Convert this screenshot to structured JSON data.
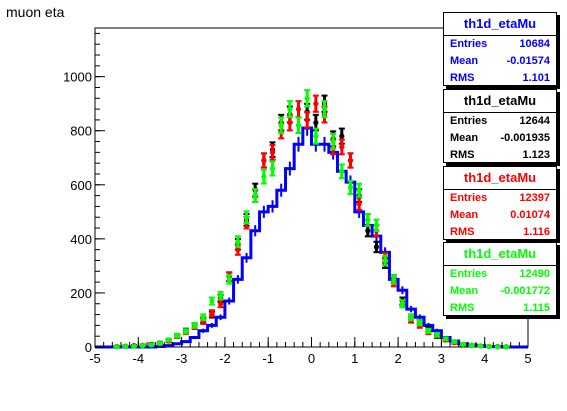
{
  "title": "muon eta",
  "colors": {
    "blue": "#0000ff",
    "black": "#000000",
    "red": "#ff0000",
    "green": "#00ff00"
  },
  "stats_boxes": [
    {
      "name": "th1d_etaMu",
      "color": "#0000ff",
      "entries_label": "Entries",
      "entries": "10684",
      "mean_label": "Mean",
      "mean": "-0.01574",
      "rms_label": "RMS",
      "rms": "1.101"
    },
    {
      "name": "th1d_etaMu",
      "color": "#000000",
      "entries_label": "Entries",
      "entries": "12644",
      "mean_label": "Mean",
      "mean": "-0.001935",
      "rms_label": "RMS",
      "rms": "1.123"
    },
    {
      "name": "th1d_etaMu",
      "color": "#ff0000",
      "entries_label": "Entries",
      "entries": "12397",
      "mean_label": "Mean",
      "mean": "0.01074",
      "rms_label": "RMS",
      "rms": "1.116"
    },
    {
      "name": "th1d_etaMu",
      "color": "#00ff00",
      "entries_label": "Entries",
      "entries": "12490",
      "mean_label": "Mean",
      "mean": "-0.001772",
      "rms_label": "RMS",
      "rms": "1.115"
    }
  ],
  "chart_data": {
    "type": "bar",
    "title": "muon eta",
    "xlabel": "",
    "ylabel": "",
    "xlim": [
      -5,
      5
    ],
    "ylim": [
      0,
      1180
    ],
    "bin_width": 0.2,
    "x_ticks": [
      -5,
      -4,
      -3,
      -2,
      -1,
      0,
      1,
      2,
      3,
      4,
      5
    ],
    "y_ticks": [
      0,
      200,
      400,
      600,
      800,
      1000
    ],
    "grid": false,
    "series": [
      {
        "color": "#0000ff",
        "style": "step",
        "x": [
          -4.5,
          -4.3,
          -4.1,
          -3.9,
          -3.7,
          -3.5,
          -3.3,
          -3.1,
          -2.9,
          -2.7,
          -2.5,
          -2.3,
          -2.1,
          -1.9,
          -1.7,
          -1.5,
          -1.3,
          -1.1,
          -0.9,
          -0.7,
          -0.5,
          -0.3,
          -0.1,
          0.1,
          0.3,
          0.5,
          0.7,
          0.9,
          1.1,
          1.3,
          1.5,
          1.7,
          1.9,
          2.1,
          2.3,
          2.5,
          2.7,
          2.9,
          3.1,
          3.3,
          3.5,
          3.7,
          3.9,
          4.1,
          4.3,
          4.5
        ],
        "values": [
          0,
          0,
          0,
          0,
          0,
          2,
          5,
          12,
          20,
          35,
          60,
          80,
          110,
          170,
          250,
          330,
          430,
          500,
          520,
          580,
          660,
          750,
          810,
          750,
          750,
          720,
          650,
          610,
          500,
          450,
          410,
          350,
          250,
          210,
          140,
          110,
          80,
          60,
          35,
          22,
          12,
          8,
          5,
          2,
          1,
          0
        ]
      },
      {
        "color": "#000000",
        "style": "errorbar",
        "x": [
          -4.5,
          -4.3,
          -4.1,
          -3.9,
          -3.7,
          -3.5,
          -3.3,
          -3.1,
          -2.9,
          -2.7,
          -2.5,
          -2.3,
          -2.1,
          -1.9,
          -1.7,
          -1.5,
          -1.3,
          -1.1,
          -0.9,
          -0.7,
          -0.5,
          -0.3,
          -0.1,
          0.1,
          0.3,
          0.5,
          0.7,
          0.9,
          1.1,
          1.3,
          1.5,
          1.7,
          1.9,
          2.1,
          2.3,
          2.5,
          2.7,
          2.9,
          3.1,
          3.3,
          3.5,
          3.7,
          3.9,
          4.1,
          4.3,
          4.5
        ],
        "values": [
          2,
          3,
          5,
          6,
          10,
          15,
          25,
          40,
          60,
          80,
          100,
          120,
          180,
          260,
          380,
          470,
          580,
          690,
          730,
          830,
          860,
          820,
          870,
          830,
          900,
          770,
          780,
          690,
          560,
          430,
          370,
          310,
          250,
          170,
          110,
          90,
          65,
          40,
          28,
          18,
          10,
          6,
          4,
          2,
          2,
          1
        ]
      },
      {
        "color": "#ff0000",
        "style": "errorbar",
        "x": [
          -4.5,
          -4.3,
          -4.1,
          -3.9,
          -3.7,
          -3.5,
          -3.3,
          -3.1,
          -2.9,
          -2.7,
          -2.5,
          -2.3,
          -2.1,
          -1.9,
          -1.7,
          -1.5,
          -1.3,
          -1.1,
          -0.9,
          -0.7,
          -0.5,
          -0.3,
          -0.1,
          0.1,
          0.3,
          0.5,
          0.7,
          0.9,
          1.1,
          1.3,
          1.5,
          1.7,
          1.9,
          2.1,
          2.3,
          2.5,
          2.7,
          2.9,
          3.1,
          3.3,
          3.5,
          3.7,
          3.9,
          4.1,
          4.3,
          4.5
        ],
        "values": [
          1,
          2,
          4,
          6,
          8,
          12,
          22,
          40,
          55,
          75,
          95,
          125,
          160,
          260,
          360,
          460,
          560,
          690,
          720,
          800,
          830,
          880,
          840,
          900,
          860,
          740,
          740,
          690,
          530,
          470,
          430,
          330,
          240,
          160,
          100,
          80,
          55,
          42,
          26,
          16,
          9,
          6,
          4,
          2,
          1,
          1
        ]
      },
      {
        "color": "#00ff00",
        "style": "errorbar",
        "x": [
          -4.5,
          -4.3,
          -4.1,
          -3.9,
          -3.7,
          -3.5,
          -3.3,
          -3.1,
          -2.9,
          -2.7,
          -2.5,
          -2.3,
          -2.1,
          -1.9,
          -1.7,
          -1.5,
          -1.3,
          -1.1,
          -0.9,
          -0.7,
          -0.5,
          -0.3,
          -0.1,
          0.1,
          0.3,
          0.5,
          0.7,
          0.9,
          1.1,
          1.3,
          1.5,
          1.7,
          1.9,
          2.1,
          2.3,
          2.5,
          2.7,
          2.9,
          3.1,
          3.3,
          3.5,
          3.7,
          3.9,
          4.1,
          4.3,
          4.5
        ],
        "values": [
          1,
          2,
          3,
          5,
          8,
          14,
          26,
          42,
          58,
          80,
          110,
          170,
          190,
          250,
          390,
          480,
          560,
          630,
          660,
          820,
          880,
          820,
          920,
          780,
          880,
          760,
          650,
          590,
          580,
          470,
          450,
          320,
          250,
          160,
          110,
          90,
          60,
          45,
          30,
          20,
          10,
          6,
          4,
          2,
          1,
          1
        ]
      }
    ]
  }
}
